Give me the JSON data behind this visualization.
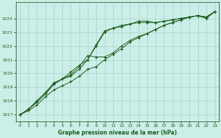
{
  "title": "Graphe pression niveau de la mer (hPa)",
  "bg_color": "#cceee8",
  "grid_color": "#aad4cc",
  "line_color": "#1a5c1a",
  "xlim": [
    -0.5,
    23.5
  ],
  "ylim": [
    1016.5,
    1025.2
  ],
  "yticks": [
    1017,
    1018,
    1019,
    1020,
    1021,
    1022,
    1023,
    1024
  ],
  "xticks": [
    0,
    1,
    2,
    3,
    4,
    5,
    6,
    7,
    8,
    9,
    10,
    11,
    12,
    13,
    14,
    15,
    16,
    17,
    18,
    19,
    20,
    21,
    22,
    23
  ],
  "series": [
    [
      1017.0,
      1017.3,
      1017.7,
      1018.3,
      1018.8,
      1019.1,
      1019.4,
      1019.8,
      1020.3,
      1020.5,
      1021.0,
      1021.4,
      1021.8,
      1022.3,
      1022.6,
      1022.9,
      1023.2,
      1023.5,
      1023.7,
      1023.9,
      1024.1,
      1024.2,
      1024.1,
      1024.5
    ],
    [
      1017.0,
      1017.4,
      1017.9,
      1018.5,
      1019.2,
      1019.6,
      1019.9,
      1020.5,
      1021.3,
      1021.2,
      1021.2,
      1021.5,
      1022.0,
      1022.4,
      1022.7,
      1022.9,
      1023.2,
      1023.5,
      1023.7,
      1023.9,
      1024.1,
      1024.2,
      1024.1,
      1024.5
    ],
    [
      1017.0,
      1017.4,
      1018.0,
      1018.6,
      1019.3,
      1019.6,
      1019.8,
      1020.3,
      1021.0,
      1022.0,
      1023.0,
      1023.3,
      1023.4,
      1023.6,
      1023.7,
      1023.7,
      1023.7,
      1023.8,
      1023.9,
      1024.0,
      1024.1,
      1024.2,
      1024.1,
      1024.5
    ],
    [
      1017.0,
      1017.4,
      1018.0,
      1018.6,
      1019.3,
      1019.6,
      1020.1,
      1020.6,
      1021.0,
      1022.1,
      1023.1,
      1023.3,
      1023.5,
      1023.6,
      1023.8,
      1023.8,
      1023.7,
      1023.8,
      1023.9,
      1024.0,
      1024.1,
      1024.2,
      1024.0,
      1024.5
    ]
  ]
}
